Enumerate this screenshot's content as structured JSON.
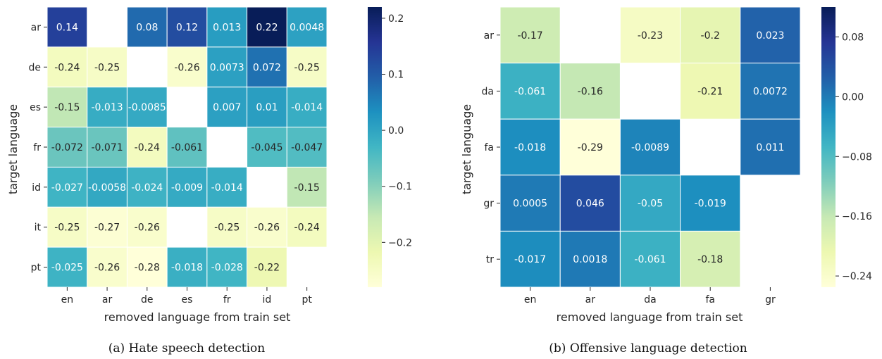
{
  "chart_data": [
    {
      "type": "heatmap",
      "caption": "(a) Hate speech detection",
      "xlabel": "removed language from train set",
      "ylabel": "target language",
      "x_categories": [
        "en",
        "ar",
        "de",
        "es",
        "fr",
        "id",
        "pt"
      ],
      "y_categories": [
        "ar",
        "de",
        "es",
        "fr",
        "id",
        "it",
        "pt"
      ],
      "values": [
        [
          0.14,
          null,
          0.08,
          0.12,
          0.013,
          0.22,
          0.0048
        ],
        [
          -0.24,
          -0.25,
          null,
          -0.26,
          0.0073,
          0.072,
          -0.25
        ],
        [
          -0.15,
          -0.013,
          -0.0085,
          null,
          0.007,
          0.01,
          -0.014
        ],
        [
          -0.072,
          -0.071,
          -0.24,
          -0.061,
          null,
          -0.045,
          -0.047
        ],
        [
          -0.027,
          -0.0058,
          -0.024,
          -0.009,
          -0.014,
          null,
          -0.15
        ],
        [
          -0.25,
          -0.27,
          -0.26,
          null,
          -0.25,
          -0.26,
          -0.24
        ],
        [
          -0.025,
          -0.26,
          -0.28,
          -0.018,
          -0.028,
          -0.22,
          null
        ]
      ],
      "cell_labels": [
        [
          "0.14",
          "",
          "0.08",
          "0.12",
          "0.013",
          "0.22",
          "0.0048"
        ],
        [
          "-0.24",
          "-0.25",
          "",
          "-0.26",
          "0.0073",
          "0.072",
          "-0.25"
        ],
        [
          "-0.15",
          "-0.013",
          "-0.0085",
          "",
          "0.007",
          "0.01",
          "-0.014"
        ],
        [
          "-0.072",
          "-0.071",
          "-0.24",
          "-0.061",
          "",
          "-0.045",
          "-0.047"
        ],
        [
          "-0.027",
          "-0.0058",
          "-0.024",
          "-0.009",
          "-0.014",
          "",
          "-0.15"
        ],
        [
          "-0.25",
          "-0.27",
          "-0.26",
          "",
          "-0.25",
          "-0.26",
          "-0.24"
        ],
        [
          "-0.025",
          "-0.26",
          "-0.28",
          "-0.018",
          "-0.028",
          "-0.22",
          ""
        ]
      ],
      "colormap": "YlGnBu",
      "vmin": -0.28,
      "vmax": 0.22,
      "colorbar_ticks": [
        0.2,
        0.1,
        0.0,
        -0.1,
        -0.2
      ],
      "colorbar_tick_labels": [
        "0.2",
        "0.1",
        "0.0",
        "−0.1",
        "−0.2"
      ]
    },
    {
      "type": "heatmap",
      "caption": "(b) Offensive language detection",
      "xlabel": "removed language from train set",
      "ylabel": "target language",
      "x_categories": [
        "en",
        "ar",
        "da",
        "fa",
        "gr"
      ],
      "y_categories": [
        "ar",
        "da",
        "fa",
        "gr",
        "tr"
      ],
      "values": [
        [
          -0.17,
          null,
          -0.23,
          -0.2,
          0.023
        ],
        [
          -0.061,
          -0.16,
          null,
          -0.21,
          0.0072
        ],
        [
          -0.018,
          -0.29,
          -0.0089,
          null,
          0.011
        ],
        [
          0.0005,
          0.046,
          -0.05,
          -0.019,
          null
        ],
        [
          -0.017,
          0.0018,
          -0.061,
          -0.18,
          null
        ]
      ],
      "cell_labels": [
        [
          "-0.17",
          "",
          "-0.23",
          "-0.2",
          "0.023"
        ],
        [
          "-0.061",
          "-0.16",
          "",
          "-0.21",
          "0.0072"
        ],
        [
          "-0.018",
          "-0.29",
          "-0.0089",
          "",
          "0.011"
        ],
        [
          "0.0005",
          "0.046",
          "-0.05",
          "-0.019",
          ""
        ],
        [
          "-0.017",
          "0.0018",
          "-0.061",
          "-0.18",
          ""
        ]
      ],
      "colormap": "YlGnBu",
      "vmin": -0.255,
      "vmax": 0.12,
      "colorbar_ticks": [
        0.08,
        0.0,
        -0.08,
        -0.16,
        -0.24
      ],
      "colorbar_tick_labels": [
        "0.08",
        "0.00",
        "−0.08",
        "−0.16",
        "−0.24"
      ]
    }
  ]
}
